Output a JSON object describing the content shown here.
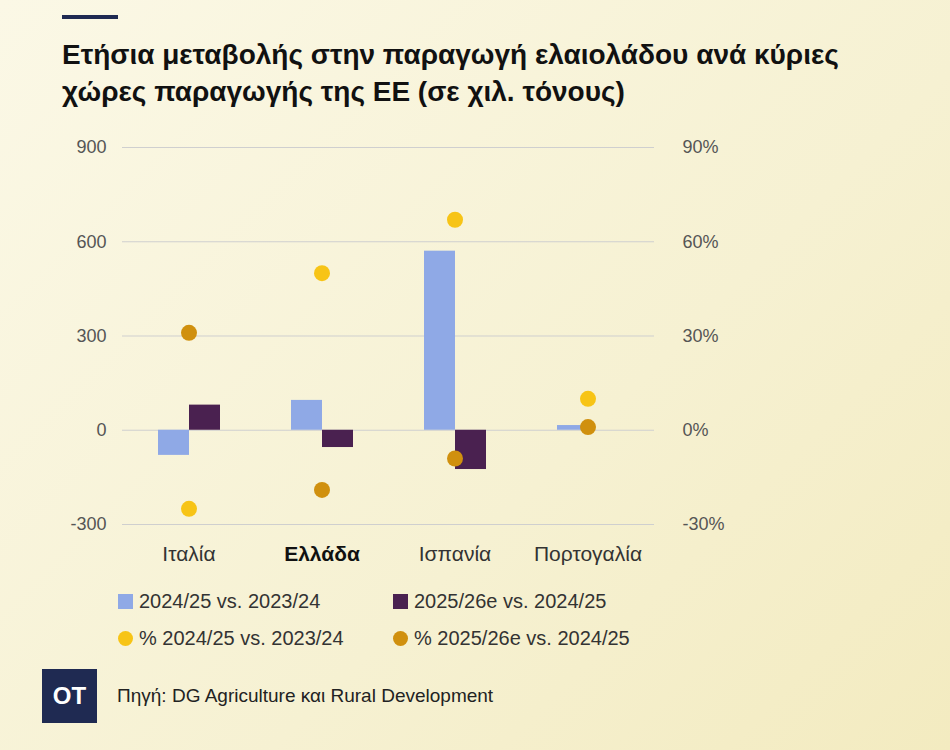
{
  "chart_data": {
    "type": "bar",
    "title": "Ετήσια μεταβολής στην παραγωγή ελαιολάδου ανά κύριες χώρες παραγωγής της ΕΕ (σε χιλ. τόνους)",
    "categories": [
      "Ιταλία",
      "Ελλάδα",
      "Ισπανία",
      "Πορτογαλία"
    ],
    "ylim": [
      -300,
      900
    ],
    "yticks": [
      -300,
      0,
      300,
      600,
      900
    ],
    "y2lim": [
      -30,
      90
    ],
    "y2ticks": [
      {
        "value": -30,
        "label": "-30%"
      },
      {
        "value": 0,
        "label": "0%"
      },
      {
        "value": 30,
        "label": "30%"
      },
      {
        "value": 60,
        "label": "60%"
      },
      {
        "value": 90,
        "label": "90%"
      }
    ],
    "grid": true,
    "legend": "bottom",
    "series": [
      {
        "name": "2024/25 vs. 2023/24",
        "type": "bar",
        "color": "#8fa9e6",
        "values": [
          -80,
          95,
          570,
          15
        ]
      },
      {
        "name": "2025/26e vs. 2024/25",
        "type": "bar",
        "color": "#4a2150",
        "values": [
          80,
          -55,
          -125,
          0
        ]
      },
      {
        "name": "% 2024/25 vs. 2023/24",
        "type": "scatter",
        "axis": "y2",
        "color": "#f7c416",
        "values": [
          -25,
          50,
          67,
          10
        ]
      },
      {
        "name": "% 2025/26e vs. 2024/25",
        "type": "scatter",
        "axis": "y2",
        "color": "#d0900e",
        "values": [
          31,
          -19,
          -9,
          1
        ]
      }
    ],
    "logo": "OT",
    "source": "Πηγή: DG Agriculture και Rural Development"
  }
}
